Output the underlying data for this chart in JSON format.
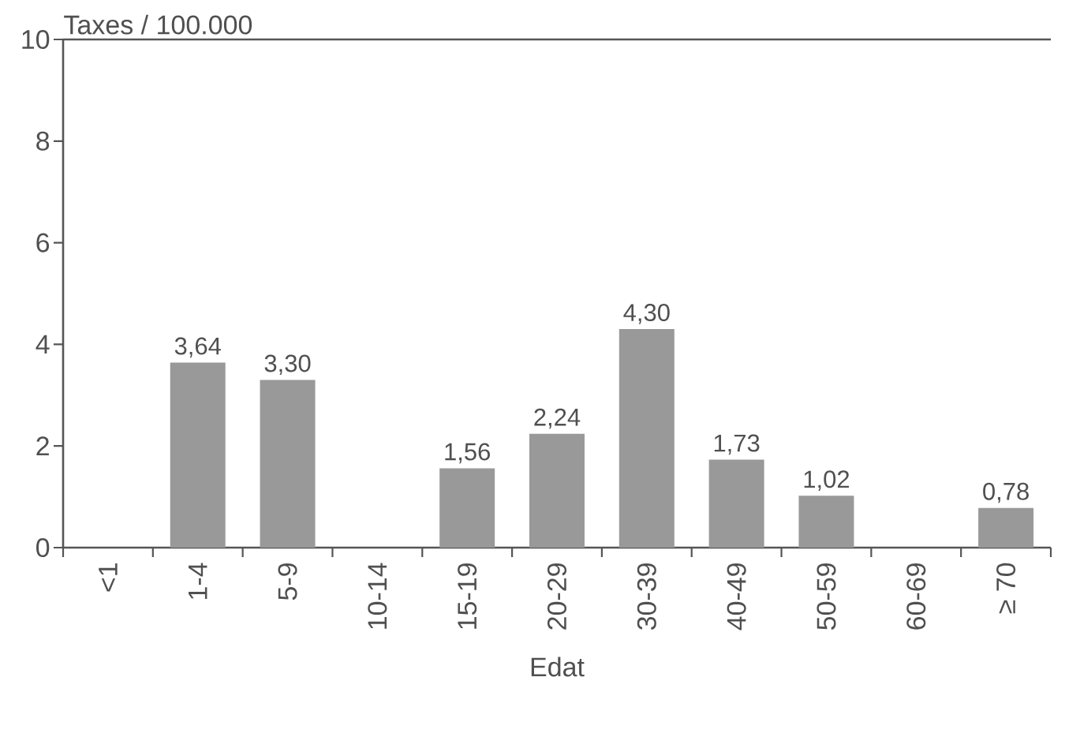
{
  "chart_data": {
    "type": "bar",
    "xlabel": "Edat",
    "ylabel": "Taxes / 100.000",
    "categories": [
      "<1",
      "1-4",
      "5-9",
      "10-14",
      "15-19",
      "20-29",
      "30-39",
      "40-49",
      "50-59",
      "60-69",
      "≥ 70"
    ],
    "values": [
      null,
      3.64,
      3.3,
      null,
      1.56,
      2.24,
      4.3,
      1.73,
      1.02,
      null,
      0.78
    ],
    "value_labels": [
      null,
      "3,64",
      "3,30",
      null,
      "1,56",
      "2,24",
      "4,30",
      "1,73",
      "1,02",
      null,
      "0,78"
    ],
    "color": "#999999",
    "ylim": [
      0,
      10
    ],
    "yticks": [
      0,
      2,
      4,
      6,
      8,
      10
    ]
  }
}
